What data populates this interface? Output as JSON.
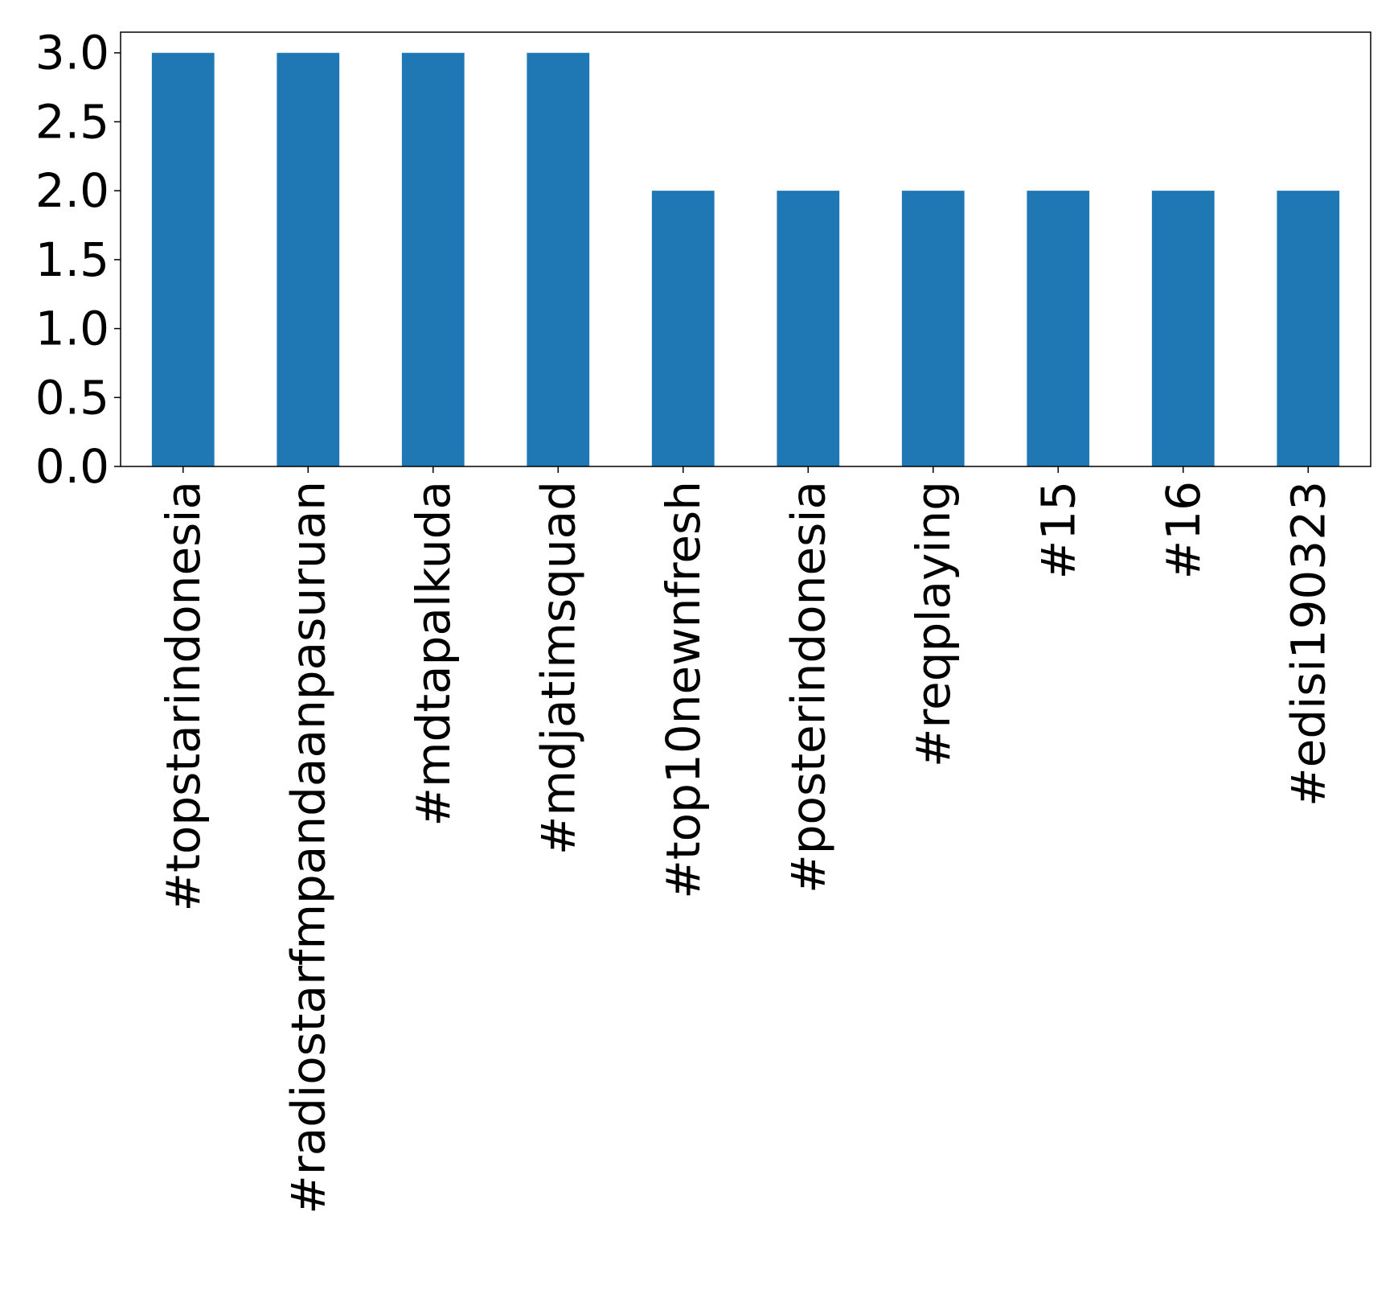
{
  "chart_data": {
    "type": "bar",
    "categories": [
      "#topstarindonesia",
      "#radiostarfmpandaanpasuruan",
      "#mdtapalkuda",
      "#mdjatimsquad",
      "#top10newnfresh",
      "#posterindonesia",
      "#reqplaying",
      "#15",
      "#16",
      "#edisi190323"
    ],
    "values": [
      3,
      3,
      3,
      3,
      2,
      2,
      2,
      2,
      2,
      2
    ],
    "ylim": [
      0,
      3.15
    ],
    "yticks": [
      "0.0",
      "0.5",
      "1.0",
      "1.5",
      "2.0",
      "2.5",
      "3.0"
    ],
    "grid": false,
    "bar_color": "#1f77b4"
  }
}
